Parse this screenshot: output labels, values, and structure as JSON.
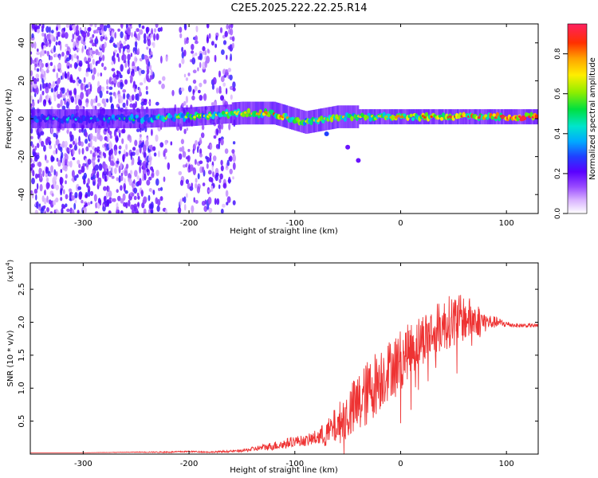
{
  "title": "C2E5.2025.222.22.25.R14",
  "colors": {
    "snr_line": "#ee3333",
    "specgram_low": "#c8a0ff",
    "specgram_mid": "#2040ff",
    "specgram_high": "#ff2020"
  },
  "chart_data": [
    {
      "type": "heatmap",
      "name": "spectrogram",
      "xlabel": "Height of straight line (km)",
      "ylabel": "Frequency (Hz)",
      "xlim": [
        -350,
        130
      ],
      "ylim": [
        -50,
        50
      ],
      "xticks": [
        -300,
        -200,
        -100,
        0,
        100
      ],
      "xtick_labels": [
        "-300",
        "-200",
        "-100",
        "0",
        "100"
      ],
      "yticks": [
        -40,
        -20,
        0,
        20,
        40
      ],
      "ytick_labels": [
        "-40",
        "-20",
        "0",
        "20",
        "40"
      ],
      "ridge": [
        {
          "x": -350,
          "freq": 0,
          "amp": 0.35
        },
        {
          "x": -300,
          "freq": 0,
          "amp": 0.3
        },
        {
          "x": -250,
          "freq": 0,
          "amp": 0.4
        },
        {
          "x": -200,
          "freq": 1,
          "amp": 0.55
        },
        {
          "x": -150,
          "freq": 3,
          "amp": 0.6
        },
        {
          "x": -120,
          "freq": 3,
          "amp": 0.75
        },
        {
          "x": -90,
          "freq": -2,
          "amp": 0.6
        },
        {
          "x": -60,
          "freq": 1,
          "amp": 0.65
        },
        {
          "x": -30,
          "freq": 1,
          "amp": 0.6
        },
        {
          "x": 0,
          "freq": 1,
          "amp": 0.7
        },
        {
          "x": 50,
          "freq": 1,
          "amp": 0.8
        },
        {
          "x": 100,
          "freq": 1,
          "amp": 0.9
        },
        {
          "x": 130,
          "freq": 1,
          "amp": 0.95
        }
      ],
      "branch": [
        {
          "x": -70,
          "freq": -8
        },
        {
          "x": -50,
          "freq": -15
        },
        {
          "x": -40,
          "freq": -22
        }
      ]
    },
    {
      "type": "line",
      "name": "snr",
      "xlabel": "Height of straight line (km)",
      "ylabel": "SNR (10 * v/v)",
      "y_multiplier": "(x10",
      "y_multiplier_exp": "4",
      "y_multiplier_close": ")",
      "xlim": [
        -350,
        130
      ],
      "ylim": [
        0,
        2.9
      ],
      "xticks": [
        -300,
        -200,
        -100,
        0,
        100
      ],
      "xtick_labels": [
        "-300",
        "-200",
        "-100",
        "0",
        "100"
      ],
      "yticks": [
        0.5,
        1.0,
        1.5,
        2.0,
        2.5
      ],
      "ytick_labels": [
        "0.5",
        "1.0",
        "1.5",
        "2.0",
        "2.5"
      ],
      "series": [
        {
          "x": [
            -350,
            -300,
            -250,
            -220,
            -200,
            -180,
            -150,
            -130,
            -110,
            -100,
            -90,
            -80,
            -70,
            -60,
            -50,
            -40,
            -30,
            -20,
            -10,
            0,
            10,
            20,
            30,
            40,
            50,
            60,
            70,
            80,
            90,
            100,
            110,
            120,
            130
          ],
          "y": [
            0.02,
            0.02,
            0.03,
            0.03,
            0.04,
            0.03,
            0.05,
            0.1,
            0.15,
            0.2,
            0.2,
            0.25,
            0.3,
            0.45,
            0.6,
            0.75,
            0.95,
            1.15,
            1.3,
            1.45,
            1.6,
            1.75,
            1.85,
            1.95,
            2.05,
            2.05,
            2.05,
            2.0,
            2.0,
            1.97,
            1.95,
            1.95,
            1.95
          ],
          "noise": [
            0,
            0,
            0.005,
            0.01,
            0.01,
            0.01,
            0.02,
            0.05,
            0.08,
            0.08,
            0.08,
            0.12,
            0.2,
            0.3,
            0.4,
            0.5,
            0.5,
            0.5,
            0.45,
            0.45,
            0.4,
            0.4,
            0.4,
            0.4,
            0.4,
            0.35,
            0.3,
            0.15,
            0.08,
            0.05,
            0.03,
            0.03,
            0.03
          ]
        }
      ]
    }
  ],
  "colorbar": {
    "label": "Normalized spectral amplitude",
    "range": [
      0,
      0.95
    ],
    "ticks": [
      0.0,
      0.2,
      0.4,
      0.6,
      0.8
    ],
    "tick_labels": [
      "0.0",
      "0.2",
      "0.4",
      "0.6",
      "0.8"
    ]
  }
}
